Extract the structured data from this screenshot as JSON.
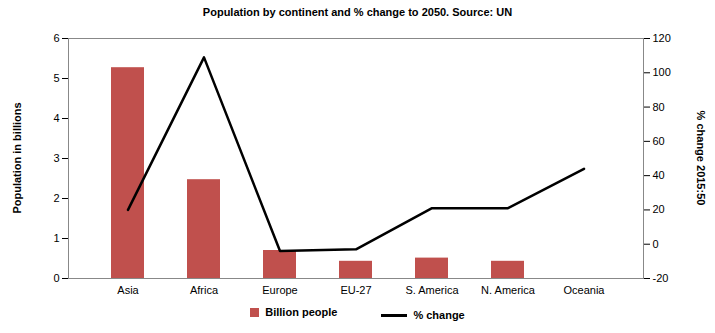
{
  "chart_data": {
    "type": "bar",
    "title": "Population by continent and % change to 2050. Source: UN",
    "categories": [
      "Asia",
      "Africa",
      "Europe",
      "EU-27",
      "S. America",
      "N. America",
      "Oceania"
    ],
    "series": [
      {
        "name": "Billion people",
        "type": "bar",
        "color": "#c0504d",
        "values": [
          5.27,
          2.47,
          0.7,
          0.43,
          0.51,
          0.43,
          0
        ]
      },
      {
        "name": "% change",
        "type": "line",
        "color": "#000000",
        "axis": "y2",
        "values": [
          20,
          109,
          -4,
          -3,
          21,
          21,
          44
        ]
      }
    ],
    "ylabel": "Population in billions",
    "y2label": "% change 2015:50",
    "ylim": [
      0,
      6
    ],
    "yticks": [
      0,
      1,
      2,
      3,
      4,
      5,
      6
    ],
    "y2lim": [
      -20,
      120
    ],
    "y2ticks": [
      -20,
      0,
      20,
      40,
      60,
      80,
      100,
      120
    ],
    "grid": false,
    "legend": "bottom"
  }
}
